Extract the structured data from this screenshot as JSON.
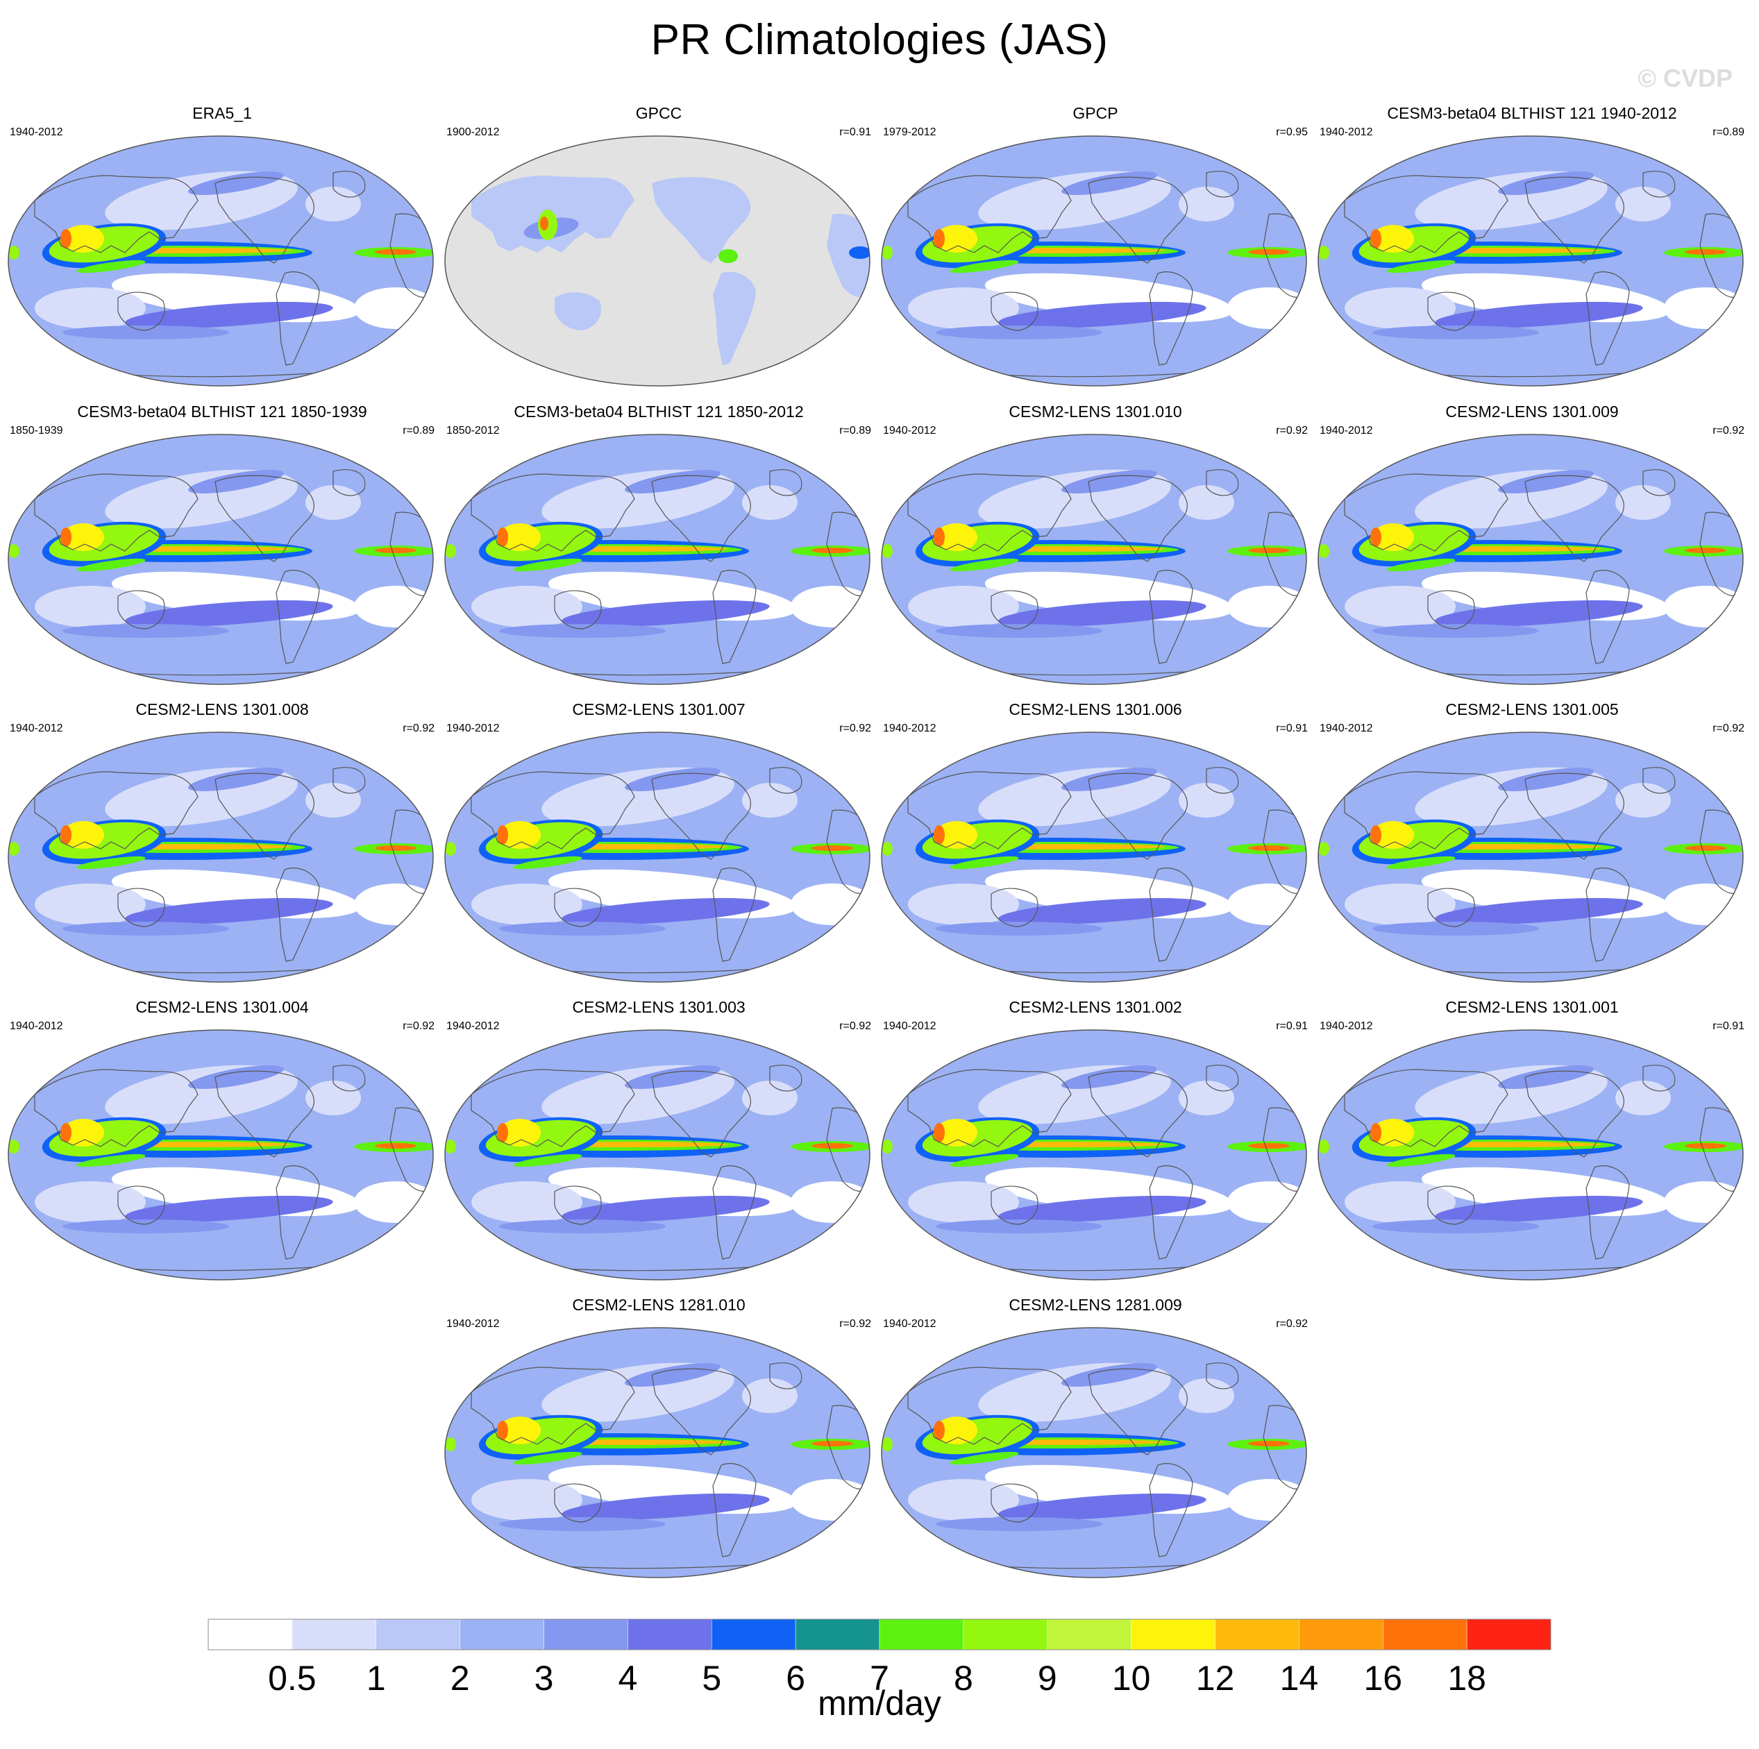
{
  "title": "PR Climatologies (JAS)",
  "watermark": "© CVDP",
  "colors": {
    "ocean_bg": "#8ca6f5",
    "missing": "#e2e2e2",
    "coast": "#555555"
  },
  "chart_data": {
    "type": "heatmap",
    "projection": "robinson",
    "panels": [
      {
        "title": "ERA5_1",
        "years": "1940-2012",
        "r": ""
      },
      {
        "title": "GPCC",
        "years": "1900-2012",
        "r": "r=0.91",
        "land_only": true
      },
      {
        "title": "GPCP",
        "years": "1979-2012",
        "r": "r=0.95"
      },
      {
        "title": "CESM3-beta04 BLTHIST 121 1940-2012",
        "years": "1940-2012",
        "r": "r=0.89"
      },
      {
        "title": "CESM3-beta04 BLTHIST 121 1850-1939",
        "years": "1850-1939",
        "r": "r=0.89"
      },
      {
        "title": "CESM3-beta04 BLTHIST 121 1850-2012",
        "years": "1850-2012",
        "r": "r=0.89"
      },
      {
        "title": "CESM2-LENS 1301.010",
        "years": "1940-2012",
        "r": "r=0.92"
      },
      {
        "title": "CESM2-LENS 1301.009",
        "years": "1940-2012",
        "r": "r=0.92"
      },
      {
        "title": "CESM2-LENS 1301.008",
        "years": "1940-2012",
        "r": "r=0.92"
      },
      {
        "title": "CESM2-LENS 1301.007",
        "years": "1940-2012",
        "r": "r=0.92"
      },
      {
        "title": "CESM2-LENS 1301.006",
        "years": "1940-2012",
        "r": "r=0.91"
      },
      {
        "title": "CESM2-LENS 1301.005",
        "years": "1940-2012",
        "r": "r=0.92"
      },
      {
        "title": "CESM2-LENS 1301.004",
        "years": "1940-2012",
        "r": "r=0.92"
      },
      {
        "title": "CESM2-LENS 1301.003",
        "years": "1940-2012",
        "r": "r=0.92"
      },
      {
        "title": "CESM2-LENS 1301.002",
        "years": "1940-2012",
        "r": "r=0.91"
      },
      {
        "title": "CESM2-LENS 1301.001",
        "years": "1940-2012",
        "r": "r=0.91"
      },
      {
        "title": "CESM2-LENS 1281.010",
        "years": "1940-2012",
        "r": "r=0.92"
      },
      {
        "title": "CESM2-LENS 1281.009",
        "years": "1940-2012",
        "r": "r=0.92"
      }
    ],
    "colorbar": {
      "levels": [
        0.5,
        1,
        2,
        3,
        4,
        5,
        6,
        7,
        8,
        9,
        10,
        12,
        14,
        16,
        18
      ],
      "tick_labels": [
        "0.5",
        "1",
        "2",
        "3",
        "4",
        "5",
        "6",
        "7",
        "8",
        "9",
        "10",
        "12",
        "14",
        "16",
        "18"
      ],
      "colors": [
        "#ffffff",
        "#d8defa",
        "#b9c8f6",
        "#9cb2f4",
        "#8498f0",
        "#6e72ea",
        "#0f62f5",
        "#14938f",
        "#5cf10f",
        "#94f70f",
        "#c0f53a",
        "#fef40a",
        "#feba0a",
        "#ff9b0a",
        "#ff720a",
        "#ff2314"
      ],
      "unit": "mm/day"
    }
  }
}
